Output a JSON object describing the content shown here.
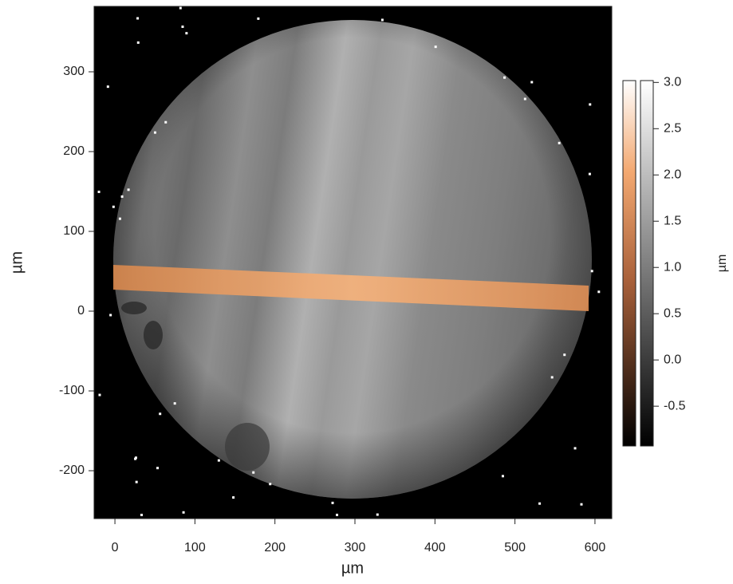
{
  "chart_data": {
    "type": "image",
    "x_label": "µm",
    "y_label": "µm",
    "colorbar_label": "µm",
    "xlim": [
      -26,
      621
    ],
    "ylim": [
      -260,
      382
    ],
    "xticks": [
      0,
      100,
      200,
      300,
      400,
      500,
      600
    ],
    "yticks": [
      -200,
      -100,
      0,
      100,
      200,
      300
    ],
    "clim": [
      -0.93,
      3.02
    ],
    "cticks": [
      {
        "value": -0.5,
        "label": "-0.5"
      },
      {
        "value": 0,
        "label": "0.0"
      },
      {
        "value": 0.5,
        "label": "0.5"
      },
      {
        "value": 1,
        "label": "1.0"
      },
      {
        "value": 1.5,
        "label": "1.5"
      },
      {
        "value": 2,
        "label": "2.0"
      },
      {
        "value": 2.5,
        "label": "2.5"
      },
      {
        "value": 3,
        "label": "3.0"
      }
    ]
  }
}
